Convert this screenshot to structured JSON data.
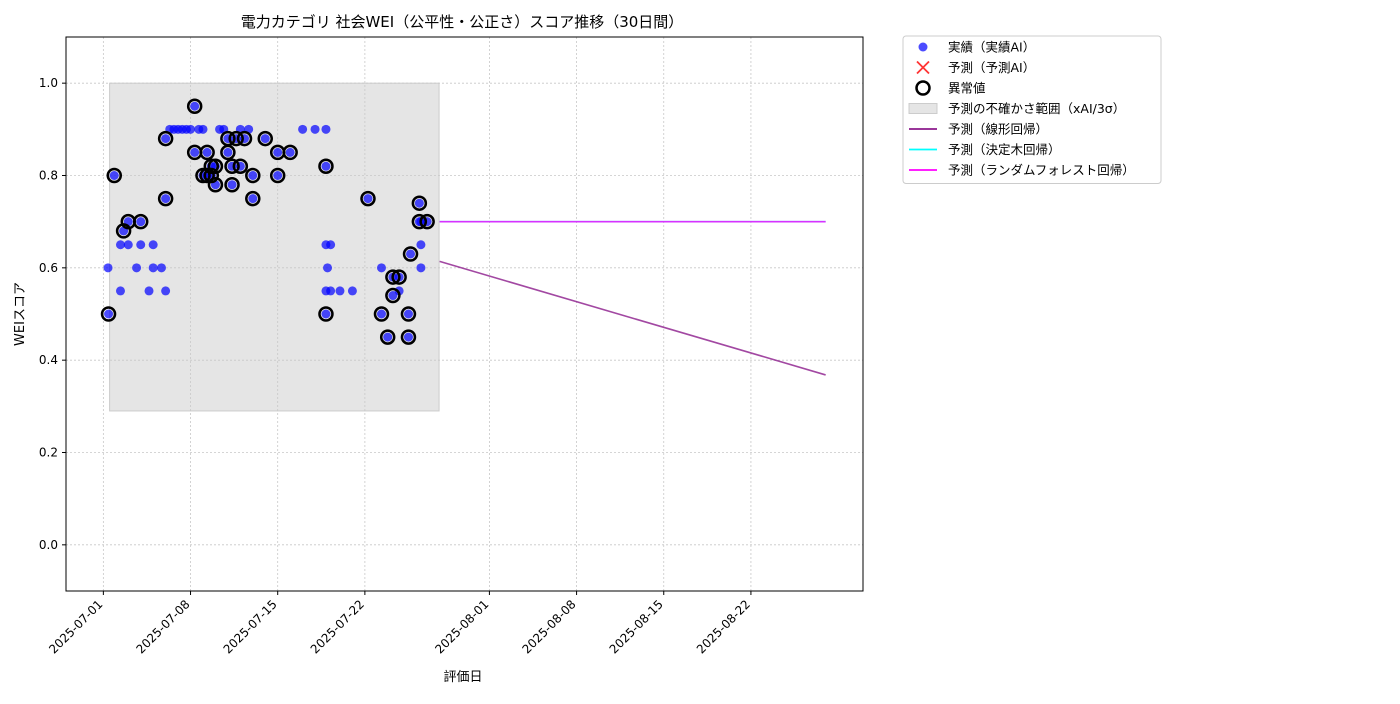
{
  "chart_data": {
    "type": "scatter",
    "title": "電力カテゴリ 社会WEI（公平性・公正さ）スコア推移（30日間）",
    "xlabel": "評価日",
    "ylabel": "WEIスコア",
    "xlim": [
      "2025-06-28",
      "2025-08-31"
    ],
    "ylim": [
      -0.1,
      1.1
    ],
    "yticks": [
      0.0,
      0.2,
      0.4,
      0.6,
      0.8,
      1.0
    ],
    "ytick_labels": [
      "0.0",
      "0.2",
      "0.4",
      "0.6",
      "0.8",
      "1.0"
    ],
    "xticks": [
      "2025-07-01",
      "2025-07-08",
      "2025-07-15",
      "2025-07-22",
      "2025-08-01",
      "2025-08-08",
      "2025-08-15",
      "2025-08-22"
    ],
    "xtick_labels": [
      "2025-07-01",
      "2025-07-08",
      "2025-07-15",
      "2025-07-22",
      "2025-08-01",
      "2025-08-08",
      "2025-08-15",
      "2025-08-22"
    ],
    "grid": true,
    "legend_placement": "outside-top-right",
    "uncertainty_band": {
      "label": "予測の不確かさ範囲（xAI/3σ）",
      "x_start": "2025-07-01 12:00",
      "x_end": "2025-07-27 23:00",
      "y_low": 0.29,
      "y_high": 1.0,
      "color": "#e5e5e5"
    },
    "series": [
      {
        "name": "実績（実績AI）",
        "kind": "scatter",
        "color": "#0000ff",
        "points": [
          [
            "2025-07-01 09:00",
            0.6
          ],
          [
            "2025-07-01 10:00",
            0.5
          ],
          [
            "2025-07-01 21:00",
            0.8
          ],
          [
            "2025-07-02 09:00",
            0.65
          ],
          [
            "2025-07-02 09:00",
            0.55
          ],
          [
            "2025-07-02 15:00",
            0.68
          ],
          [
            "2025-07-03 00:00",
            0.65
          ],
          [
            "2025-07-03 00:00",
            0.7
          ],
          [
            "2025-07-03 16:00",
            0.6
          ],
          [
            "2025-07-04 00:00",
            0.65
          ],
          [
            "2025-07-04 00:00",
            0.7
          ],
          [
            "2025-07-04 16:00",
            0.55
          ],
          [
            "2025-07-05 00:00",
            0.65
          ],
          [
            "2025-07-05 00:00",
            0.6
          ],
          [
            "2025-07-05 16:00",
            0.6
          ],
          [
            "2025-07-06 00:00",
            0.55
          ],
          [
            "2025-07-06 00:00",
            0.75
          ],
          [
            "2025-07-06 00:00",
            0.88
          ],
          [
            "2025-07-06 08:00",
            0.9
          ],
          [
            "2025-07-06 16:00",
            0.9
          ],
          [
            "2025-07-07 00:00",
            0.9
          ],
          [
            "2025-07-07 08:00",
            0.9
          ],
          [
            "2025-07-07 16:00",
            0.9
          ],
          [
            "2025-07-08 00:00",
            0.9
          ],
          [
            "2025-07-08 08:00",
            0.95
          ],
          [
            "2025-07-08 08:00",
            0.85
          ],
          [
            "2025-07-08 16:00",
            0.9
          ],
          [
            "2025-07-09 00:00",
            0.9
          ],
          [
            "2025-07-09 00:00",
            0.8
          ],
          [
            "2025-07-09 08:00",
            0.8
          ],
          [
            "2025-07-09 08:00",
            0.85
          ],
          [
            "2025-07-09 16:00",
            0.8
          ],
          [
            "2025-07-09 16:00",
            0.82
          ],
          [
            "2025-07-10 00:00",
            0.78
          ],
          [
            "2025-07-10 00:00",
            0.82
          ],
          [
            "2025-07-10 08:00",
            0.9
          ],
          [
            "2025-07-10 16:00",
            0.9
          ],
          [
            "2025-07-11 00:00",
            0.88
          ],
          [
            "2025-07-11 00:00",
            0.85
          ],
          [
            "2025-07-11 08:00",
            0.78
          ],
          [
            "2025-07-11 08:00",
            0.82
          ],
          [
            "2025-07-11 16:00",
            0.88
          ],
          [
            "2025-07-12 00:00",
            0.9
          ],
          [
            "2025-07-12 00:00",
            0.82
          ],
          [
            "2025-07-12 08:00",
            0.88
          ],
          [
            "2025-07-12 16:00",
            0.9
          ],
          [
            "2025-07-13 00:00",
            0.8
          ],
          [
            "2025-07-13 00:00",
            0.75
          ],
          [
            "2025-07-14 00:00",
            0.88
          ],
          [
            "2025-07-15 00:00",
            0.85
          ],
          [
            "2025-07-15 00:00",
            0.8
          ],
          [
            "2025-07-16 00:00",
            0.85
          ],
          [
            "2025-07-17 00:00",
            0.9
          ],
          [
            "2025-07-18 00:00",
            0.9
          ],
          [
            "2025-07-18 21:00",
            0.9
          ],
          [
            "2025-07-18 21:00",
            0.82
          ],
          [
            "2025-07-18 21:00",
            0.65
          ],
          [
            "2025-07-18 21:00",
            0.55
          ],
          [
            "2025-07-18 21:00",
            0.5
          ],
          [
            "2025-07-19 00:00",
            0.6
          ],
          [
            "2025-07-19 06:00",
            0.65
          ],
          [
            "2025-07-19 06:00",
            0.55
          ],
          [
            "2025-07-20 00:00",
            0.55
          ],
          [
            "2025-07-21 00:00",
            0.55
          ],
          [
            "2025-07-22 06:00",
            0.75
          ],
          [
            "2025-07-23 08:00",
            0.6
          ],
          [
            "2025-07-23 08:00",
            0.5
          ],
          [
            "2025-07-23 20:00",
            0.45
          ],
          [
            "2025-07-24 06:00",
            0.54
          ],
          [
            "2025-07-24 06:00",
            0.58
          ],
          [
            "2025-07-24 18:00",
            0.55
          ],
          [
            "2025-07-24 18:00",
            0.58
          ],
          [
            "2025-07-25 12:00",
            0.5
          ],
          [
            "2025-07-25 12:00",
            0.45
          ],
          [
            "2025-07-25 16:00",
            0.63
          ],
          [
            "2025-07-26 09:00",
            0.7
          ],
          [
            "2025-07-26 09:00",
            0.74
          ],
          [
            "2025-07-26 12:00",
            0.6
          ],
          [
            "2025-07-26 12:00",
            0.65
          ],
          [
            "2025-07-26 12:00",
            0.7
          ],
          [
            "2025-07-27 00:00",
            0.7
          ]
        ]
      },
      {
        "name": "予測（予測AI）",
        "kind": "scatter",
        "marker": "x",
        "color": "#ff0000",
        "points": []
      },
      {
        "name": "異常値",
        "kind": "scatter",
        "marker": "ring",
        "color": "#000000",
        "points": [
          [
            "2025-07-01 10:00",
            0.5
          ],
          [
            "2025-07-01 21:00",
            0.8
          ],
          [
            "2025-07-02 15:00",
            0.68
          ],
          [
            "2025-07-03 00:00",
            0.7
          ],
          [
            "2025-07-04 00:00",
            0.7
          ],
          [
            "2025-07-06 00:00",
            0.75
          ],
          [
            "2025-07-06 00:00",
            0.88
          ],
          [
            "2025-07-08 08:00",
            0.95
          ],
          [
            "2025-07-08 08:00",
            0.85
          ],
          [
            "2025-07-09 00:00",
            0.8
          ],
          [
            "2025-07-09 08:00",
            0.8
          ],
          [
            "2025-07-09 08:00",
            0.85
          ],
          [
            "2025-07-09 16:00",
            0.8
          ],
          [
            "2025-07-09 16:00",
            0.82
          ],
          [
            "2025-07-10 00:00",
            0.78
          ],
          [
            "2025-07-10 00:00",
            0.82
          ],
          [
            "2025-07-11 00:00",
            0.88
          ],
          [
            "2025-07-11 00:00",
            0.85
          ],
          [
            "2025-07-11 08:00",
            0.78
          ],
          [
            "2025-07-11 08:00",
            0.82
          ],
          [
            "2025-07-11 16:00",
            0.88
          ],
          [
            "2025-07-12 00:00",
            0.82
          ],
          [
            "2025-07-12 08:00",
            0.88
          ],
          [
            "2025-07-13 00:00",
            0.8
          ],
          [
            "2025-07-13 00:00",
            0.75
          ],
          [
            "2025-07-14 00:00",
            0.88
          ],
          [
            "2025-07-15 00:00",
            0.85
          ],
          [
            "2025-07-15 00:00",
            0.8
          ],
          [
            "2025-07-16 00:00",
            0.85
          ],
          [
            "2025-07-18 21:00",
            0.82
          ],
          [
            "2025-07-18 21:00",
            0.5
          ],
          [
            "2025-07-22 06:00",
            0.75
          ],
          [
            "2025-07-23 08:00",
            0.5
          ],
          [
            "2025-07-23 20:00",
            0.45
          ],
          [
            "2025-07-24 06:00",
            0.54
          ],
          [
            "2025-07-24 06:00",
            0.58
          ],
          [
            "2025-07-24 18:00",
            0.58
          ],
          [
            "2025-07-25 12:00",
            0.5
          ],
          [
            "2025-07-25 12:00",
            0.45
          ],
          [
            "2025-07-25 16:00",
            0.63
          ],
          [
            "2025-07-26 09:00",
            0.7
          ],
          [
            "2025-07-26 09:00",
            0.74
          ],
          [
            "2025-07-27 00:00",
            0.7
          ]
        ]
      },
      {
        "name": "予測（線形回帰）",
        "kind": "line",
        "color": "#8b1a8b",
        "points": [
          [
            "2025-07-28 00:00",
            0.614
          ],
          [
            "2025-08-28 00:00",
            0.368
          ]
        ]
      },
      {
        "name": "予測（決定木回帰）",
        "kind": "line",
        "color": "#00ffff",
        "points": [
          [
            "2025-07-28 00:00",
            0.7
          ],
          [
            "2025-08-28 00:00",
            0.7
          ]
        ]
      },
      {
        "name": "予測（ランダムフォレスト回帰）",
        "kind": "line",
        "color": "#ff00ff",
        "points": [
          [
            "2025-07-28 00:00",
            0.7
          ],
          [
            "2025-08-28 00:00",
            0.7
          ]
        ]
      }
    ]
  },
  "legend": {
    "items": [
      {
        "label": "実績（実績AI）",
        "icon": "scatter-dot-icon",
        "color": "#0000ff"
      },
      {
        "label": "予測（予測AI）",
        "icon": "x-marker-icon",
        "color": "#ff0000"
      },
      {
        "label": "異常値",
        "icon": "ring-marker-icon",
        "color": "#000000"
      },
      {
        "label": "予測の不確かさ範囲（xAI/3σ）",
        "icon": "band-swatch-icon",
        "color": "#e5e5e5"
      },
      {
        "label": "予測（線形回帰）",
        "icon": "line-swatch-icon",
        "color": "#8b1a8b"
      },
      {
        "label": "予測（決定木回帰）",
        "icon": "line-swatch-icon",
        "color": "#00ffff"
      },
      {
        "label": "予測（ランダムフォレスト回帰）",
        "icon": "line-swatch-icon",
        "color": "#ff00ff"
      }
    ]
  }
}
